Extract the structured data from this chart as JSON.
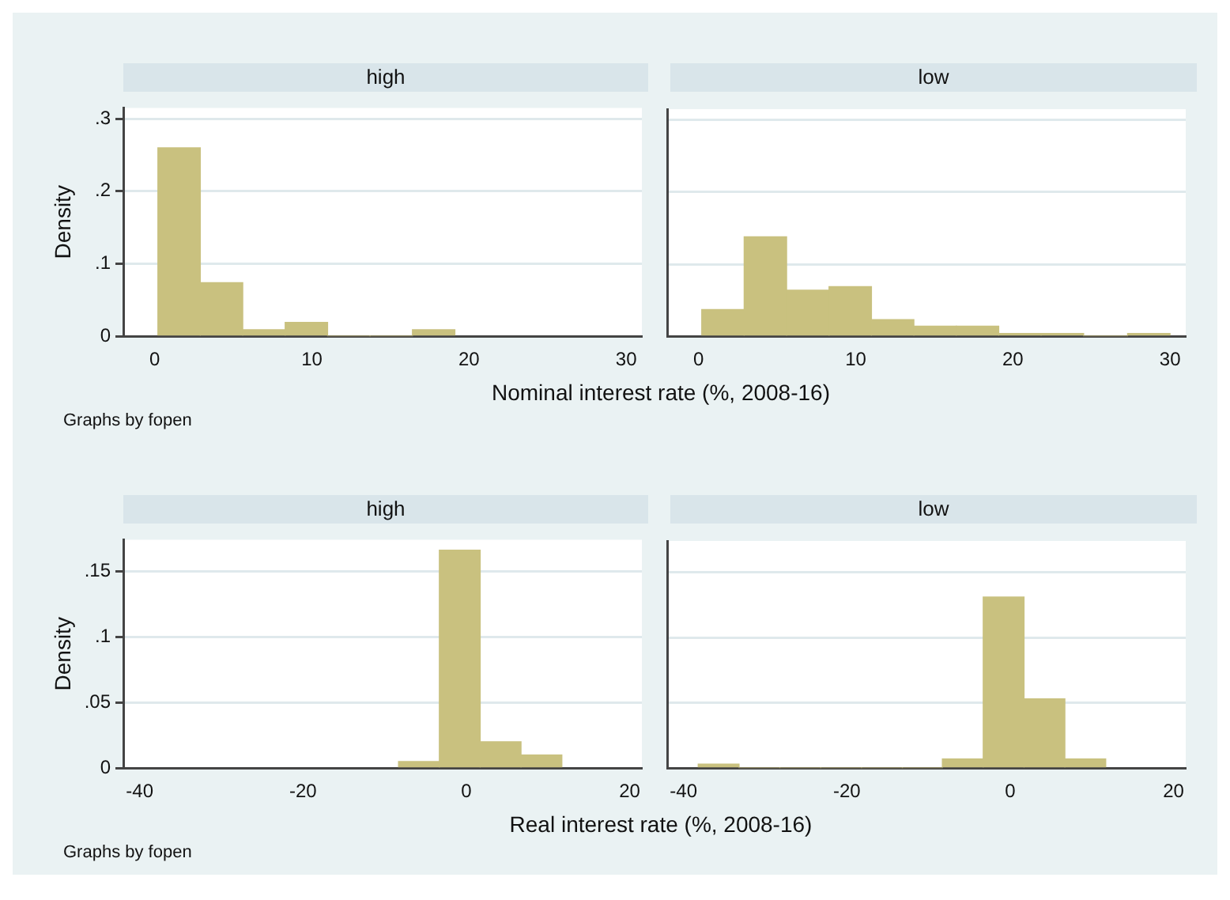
{
  "chart_data": [
    {
      "type": "histogram",
      "title": "high",
      "xlabel": "Nominal interest rate (%, 2008-16)",
      "ylabel": "Density",
      "annotations": [
        "Graphs by fopen"
      ],
      "bins": [
        0.2,
        2.9,
        5.6,
        8.3,
        11.0,
        13.7,
        16.4,
        19.1
      ],
      "values": [
        0.26,
        0.074,
        0.009,
        0.019,
        0,
        0,
        0.009
      ],
      "color": "#c9c17f",
      "xlim": [
        -2,
        31
      ],
      "xticks": [
        0,
        10,
        20,
        30
      ],
      "ylim": [
        0,
        0.315
      ],
      "yticks": [
        {
          "value": 0,
          "label": "0"
        },
        {
          "value": 0.1,
          "label": ".1"
        },
        {
          "value": 0.2,
          "label": ".2"
        },
        {
          "value": 0.3,
          "label": ".3"
        }
      ],
      "grid": "y"
    },
    {
      "type": "histogram",
      "title": "low",
      "bins": [
        0.2,
        2.9,
        5.6,
        8.3,
        11.0,
        13.7,
        16.4,
        19.1,
        21.8,
        24.5,
        27.3,
        30.0
      ],
      "values": [
        0.037,
        0.138,
        0.064,
        0.069,
        0.023,
        0.014,
        0.014,
        0.004,
        0.004,
        0,
        0.004
      ],
      "color": "#c9c17f",
      "xlim": [
        -2,
        31
      ],
      "xticks": [
        0,
        10,
        20,
        30
      ],
      "ylim": [
        0,
        0.315
      ],
      "yticks": [
        {
          "value": 0,
          "label": null
        },
        {
          "value": 0.1,
          "label": null
        },
        {
          "value": 0.2,
          "label": null
        },
        {
          "value": 0.3,
          "label": null
        }
      ],
      "grid": "y",
      "tick_labels": "x"
    },
    {
      "type": "histogram",
      "title": "high",
      "xlabel": "Real interest rate (%, 2008-16)",
      "ylabel": "Density",
      "annotations": [
        "Graphs by fopen"
      ],
      "bins": [
        -8.3,
        -3.3,
        1.7,
        6.7,
        11.7
      ],
      "values": [
        0.005,
        0.166,
        0.02,
        0.01
      ],
      "color": "#c9c17f",
      "xlim": [
        -42,
        21.5
      ],
      "xticks": [
        -40,
        -20,
        0,
        20
      ],
      "ylim": [
        0,
        0.174
      ],
      "yticks": [
        {
          "value": 0,
          "label": "0"
        },
        {
          "value": 0.05,
          "label": ".05"
        },
        {
          "value": 0.1,
          "label": ".1"
        },
        {
          "value": 0.15,
          "label": ".15"
        }
      ],
      "grid": "y"
    },
    {
      "type": "histogram",
      "title": "low",
      "bins": [
        -38.2,
        -33.2,
        -28.2,
        -23.2,
        -18.2,
        -13.2,
        -8.3,
        -3.3,
        1.7,
        6.7,
        11.7
      ],
      "values": [
        0.003,
        0,
        0,
        0,
        0,
        0,
        0.007,
        0.131,
        0.053,
        0.007
      ],
      "color": "#c9c17f",
      "xlim": [
        -42,
        21.5
      ],
      "xticks": [
        -40,
        -20,
        0,
        20
      ],
      "ylim": [
        0,
        0.174
      ],
      "yticks": [
        {
          "value": 0,
          "label": null
        },
        {
          "value": 0.05,
          "label": null
        },
        {
          "value": 0.1,
          "label": null
        },
        {
          "value": 0.15,
          "label": null
        }
      ],
      "grid": "y",
      "tick_labels": "x"
    }
  ]
}
